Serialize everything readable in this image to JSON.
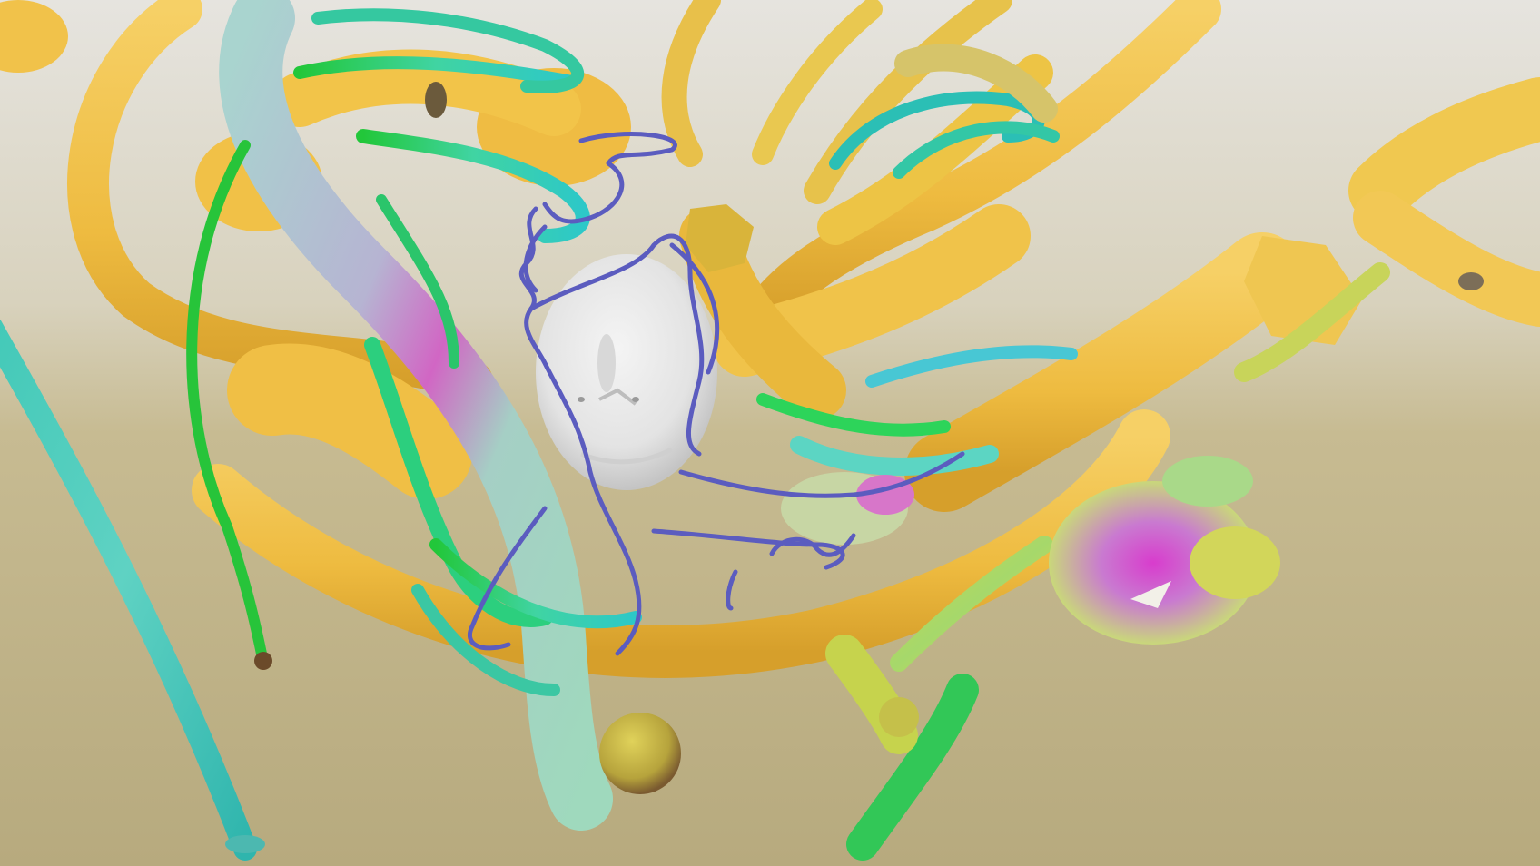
{
  "scene": {
    "kind": "3d-render",
    "description_free": true,
    "colors": {
      "sky_top": "#e4e2dc",
      "sky_mid": "#d3cbb0",
      "ground": "#b9ab80",
      "tube_yellow": "#f0c24a",
      "tube_yellow_shadow": "#d39e2a",
      "tube_green": "#28c63a",
      "tube_teal": "#3fc7b8",
      "tube_pastel": "#9fd4c8",
      "tube_magenta": "#d545c4",
      "wire_blue": "#5a5bbd",
      "head_white": "#ededed",
      "head_shadow": "#c9c9c9"
    }
  }
}
